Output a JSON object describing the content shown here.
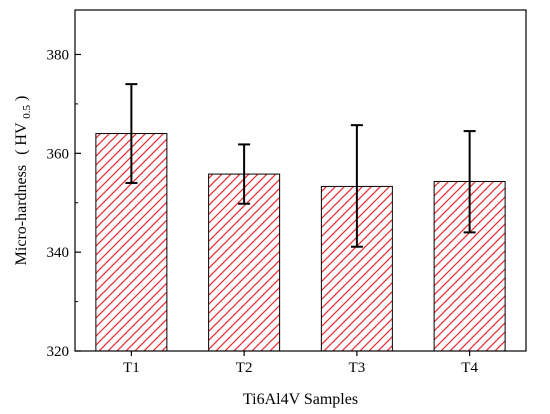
{
  "chart_data": {
    "type": "bar",
    "title": "",
    "xlabel": "Ti6Al4V Samples",
    "ylabel": "Micro-hardness",
    "ylabel_unit": {
      "open": "(",
      "base": "HV",
      "subscript": "0.5",
      "close": ")"
    },
    "categories": [
      "T1",
      "T2",
      "T3",
      "T4"
    ],
    "values": [
      364,
      355.8,
      353.3,
      354.3
    ],
    "error_plus": [
      10,
      6,
      12.4,
      10.2
    ],
    "error_minus": [
      10,
      6,
      12.2,
      10.3
    ],
    "ylim": [
      320,
      389
    ],
    "yticks": [
      320,
      340,
      360,
      380
    ],
    "grid": false,
    "bar_fill": "hatched",
    "colors": {
      "hatch": "#e8282f",
      "bar_edge": "#000000",
      "error_bar": "#000000",
      "axis": "#000000"
    }
  }
}
